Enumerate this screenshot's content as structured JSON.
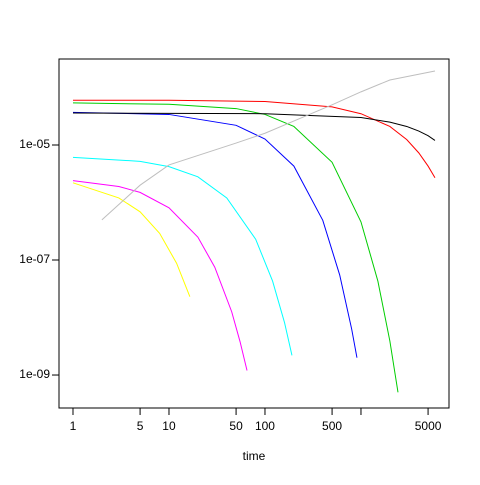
{
  "chart_data": {
    "type": "line",
    "x_label": "time",
    "log_x": true,
    "log_y": true,
    "xlim": [
      0.715,
      8260
    ],
    "ylim": [
      2.67e-10,
      0.000313
    ],
    "xticks": [
      1,
      5,
      10,
      50,
      100,
      500,
      {
        "value": 1000,
        "label": null
      },
      5000
    ],
    "yticks": [
      {
        "value": 1e-09,
        "label": "1e-09"
      },
      {
        "value": 1e-07,
        "label": "1e-07"
      },
      {
        "value": 1e-05,
        "label": "1e-05"
      }
    ],
    "series": [
      {
        "color": "#ff0000",
        "x": [
          1,
          10,
          100,
          500,
          1000,
          2000,
          3000,
          4000,
          5000,
          5900
        ],
        "values": [
          6e-05,
          6e-05,
          5.7e-05,
          4.6e-05,
          3.5e-05,
          2.1e-05,
          1.24e-05,
          7.3e-06,
          4.3e-06,
          2.7e-06
        ]
      },
      {
        "color": "#00cd00",
        "x": [
          1,
          10,
          50,
          100,
          200,
          500,
          1000,
          1500,
          2000,
          2430
        ],
        "values": [
          5.4e-05,
          5.1e-05,
          4.3e-05,
          3.4e-05,
          2.1e-05,
          5e-06,
          4.6e-07,
          4.3e-08,
          3.9e-09,
          5e-10
        ]
      },
      {
        "color": "#0000ff",
        "x": [
          1,
          10,
          50,
          100,
          200,
          400,
          600,
          800,
          908
        ],
        "values": [
          3.7e-05,
          3.4e-05,
          2.2e-05,
          1.27e-05,
          4.3e-06,
          4.9e-07,
          5.5e-08,
          6.3e-09,
          2e-09
        ]
      },
      {
        "color": "#000000",
        "x": [
          1,
          100,
          1000,
          2000,
          3000,
          4000,
          5000,
          5900
        ],
        "values": [
          3.6e-05,
          3.5e-05,
          3e-05,
          2.5e-05,
          2.1e-05,
          1.75e-05,
          1.45e-05,
          1.2e-05
        ]
      },
      {
        "color": "#00ffff",
        "x": [
          1,
          5,
          10,
          20,
          40,
          80,
          120,
          160,
          191
        ],
        "values": [
          6.1e-06,
          5.2e-06,
          4.2e-06,
          2.8e-06,
          1.2e-06,
          2.3e-07,
          4.3e-08,
          8.1e-09,
          2.2e-09
        ]
      },
      {
        "color": "#ff00ff",
        "x": [
          1,
          3,
          5,
          10,
          20,
          30,
          45,
          55,
          65
        ],
        "values": [
          2.4e-06,
          1.9e-06,
          1.5e-06,
          8.1e-07,
          2.5e-07,
          7.5e-08,
          1.26e-08,
          3.8e-09,
          1.2e-09
        ]
      },
      {
        "color": "#ffff00",
        "x": [
          1,
          3,
          5,
          8,
          12,
          16.5
        ],
        "values": [
          2.2e-06,
          1.2e-06,
          6.9e-07,
          2.9e-07,
          8.8e-08,
          2.3e-08
        ]
      },
      {
        "color": "#bebebe",
        "x": [
          2,
          5,
          10,
          50,
          100,
          500,
          1000,
          2000,
          5900
        ],
        "values": [
          5e-07,
          2e-06,
          4.5e-06,
          1.08e-05,
          1.6e-05,
          5e-05,
          8.4e-05,
          0.000135,
          0.000194
        ]
      }
    ]
  }
}
